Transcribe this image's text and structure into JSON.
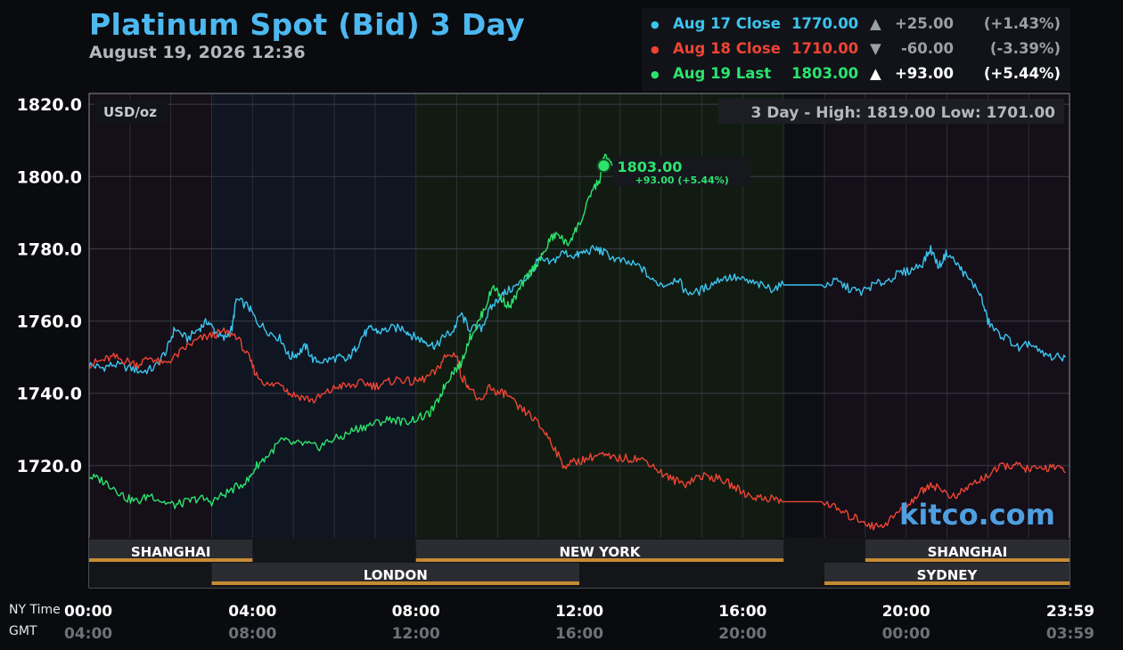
{
  "header": {
    "title": "Platinum Spot (Bid) 3 Day",
    "subtitle": "August 19, 2026 12:36"
  },
  "legend": [
    {
      "name": "Aug 17 Close",
      "value": "1770.00",
      "arrow": "▲",
      "change": "+25.00",
      "percent": "(+1.43%)",
      "color": "#3cc4ef",
      "muted": true
    },
    {
      "name": "Aug 18 Close",
      "value": "1710.00",
      "arrow": "▼",
      "change": "-60.00",
      "percent": "(-3.39%)",
      "color": "#ee4433",
      "muted": true
    },
    {
      "name": "Aug 19 Last",
      "value": "1803.00",
      "arrow": "▲",
      "change": "+93.00",
      "percent": "(+5.44%)",
      "color": "#2de36e",
      "muted": false
    }
  ],
  "chart_data": {
    "type": "line",
    "unit_label": "USD/oz",
    "stats_label": "3 Day - High: 1819.00  Low: 1701.00",
    "watermark": "kitco.com",
    "ylim": [
      1700,
      1823
    ],
    "yticks": [
      "1820.0",
      "1800.0",
      "1780.0",
      "1760.0",
      "1740.0",
      "1720.0"
    ],
    "ytick_values": [
      1820,
      1800,
      1780,
      1760,
      1740,
      1720
    ],
    "xlim_hours": [
      0,
      24
    ],
    "xticks_ny": [
      "00:00",
      "04:00",
      "08:00",
      "12:00",
      "16:00",
      "20:00",
      "23:59"
    ],
    "xticks_gmt": [
      "04:00",
      "08:00",
      "12:00",
      "16:00",
      "20:00",
      "00:00",
      "03:59"
    ],
    "xtick_hours": [
      0,
      4,
      8,
      12,
      16,
      20,
      24
    ],
    "ny_time_label": "NY Time",
    "gmt_label": "GMT",
    "sessions_top": [
      {
        "name": "SHANGHAI",
        "start": 0,
        "end": 4
      },
      {
        "name": "NEW YORK",
        "start": 8,
        "end": 17
      },
      {
        "name": "SHANGHAI",
        "start": 19,
        "end": 24
      }
    ],
    "sessions_bottom": [
      {
        "name": "LONDON",
        "start": 3,
        "end": 12
      },
      {
        "name": "SYDNEY",
        "start": 18,
        "end": 24
      }
    ],
    "last_point": {
      "hour": 12.6,
      "value": 1803,
      "label": "1803.00",
      "change_label": "+93.00 (+5.44%)"
    },
    "series": [
      {
        "name": "Aug 17 Close",
        "color": "#3cc4ef",
        "points": [
          [
            0,
            1748
          ],
          [
            0.3,
            1747
          ],
          [
            0.6,
            1748
          ],
          [
            1.0,
            1747
          ],
          [
            1.3,
            1746
          ],
          [
            1.6,
            1747
          ],
          [
            1.9,
            1752
          ],
          [
            2.1,
            1758
          ],
          [
            2.4,
            1755
          ],
          [
            2.7,
            1758
          ],
          [
            2.9,
            1760
          ],
          [
            3.1,
            1757
          ],
          [
            3.3,
            1755
          ],
          [
            3.5,
            1758
          ],
          [
            3.6,
            1766
          ],
          [
            3.9,
            1764
          ],
          [
            4.1,
            1760
          ],
          [
            4.4,
            1757
          ],
          [
            4.7,
            1755
          ],
          [
            4.9,
            1750
          ],
          [
            5.1,
            1751
          ],
          [
            5.3,
            1753
          ],
          [
            5.5,
            1749
          ],
          [
            5.8,
            1749
          ],
          [
            6.1,
            1750
          ],
          [
            6.3,
            1749
          ],
          [
            6.5,
            1752
          ],
          [
            6.7,
            1756
          ],
          [
            6.9,
            1758
          ],
          [
            7.1,
            1757
          ],
          [
            7.4,
            1758
          ],
          [
            7.7,
            1758
          ],
          [
            7.9,
            1756
          ],
          [
            8.1,
            1755
          ],
          [
            8.3,
            1754
          ],
          [
            8.5,
            1753
          ],
          [
            8.7,
            1756
          ],
          [
            8.9,
            1757
          ],
          [
            9.1,
            1762
          ],
          [
            9.3,
            1758
          ],
          [
            9.6,
            1758
          ],
          [
            9.8,
            1763
          ],
          [
            10.0,
            1766
          ],
          [
            10.2,
            1768
          ],
          [
            10.5,
            1770
          ],
          [
            10.8,
            1773
          ],
          [
            11.0,
            1777
          ],
          [
            11.3,
            1776
          ],
          [
            11.6,
            1779
          ],
          [
            11.9,
            1778
          ],
          [
            12.1,
            1779
          ],
          [
            12.4,
            1780
          ],
          [
            12.6,
            1779
          ],
          [
            12.9,
            1777
          ],
          [
            13.2,
            1776
          ],
          [
            13.5,
            1775
          ],
          [
            13.8,
            1771
          ],
          [
            14.1,
            1770
          ],
          [
            14.4,
            1772
          ],
          [
            14.6,
            1768
          ],
          [
            14.9,
            1768
          ],
          [
            15.2,
            1770
          ],
          [
            15.5,
            1772
          ],
          [
            15.8,
            1772
          ],
          [
            16.1,
            1771
          ],
          [
            16.4,
            1770
          ],
          [
            16.7,
            1769
          ],
          [
            17.0,
            1770
          ],
          [
            17.5,
            1770
          ],
          [
            18.0,
            1770
          ],
          [
            18.3,
            1771
          ],
          [
            18.6,
            1769
          ],
          [
            18.9,
            1768
          ],
          [
            19.2,
            1770
          ],
          [
            19.5,
            1771
          ],
          [
            19.8,
            1773
          ],
          [
            20.1,
            1774
          ],
          [
            20.4,
            1776
          ],
          [
            20.6,
            1780
          ],
          [
            20.8,
            1775
          ],
          [
            21.0,
            1779
          ],
          [
            21.3,
            1775
          ],
          [
            21.5,
            1772
          ],
          [
            21.8,
            1768
          ],
          [
            22.0,
            1760
          ],
          [
            22.2,
            1757
          ],
          [
            22.5,
            1755
          ],
          [
            22.8,
            1752
          ],
          [
            23.0,
            1754
          ],
          [
            23.3,
            1751
          ],
          [
            23.6,
            1750
          ],
          [
            23.9,
            1750
          ]
        ]
      },
      {
        "name": "Aug 18 Close",
        "color": "#ee4433",
        "points": [
          [
            0,
            1748
          ],
          [
            0.3,
            1749
          ],
          [
            0.6,
            1750
          ],
          [
            0.9,
            1749
          ],
          [
            1.2,
            1748
          ],
          [
            1.5,
            1750
          ],
          [
            1.8,
            1748
          ],
          [
            2.1,
            1750
          ],
          [
            2.4,
            1753
          ],
          [
            2.7,
            1755
          ],
          [
            3.0,
            1756
          ],
          [
            3.3,
            1757
          ],
          [
            3.6,
            1756
          ],
          [
            3.9,
            1750
          ],
          [
            4.1,
            1745
          ],
          [
            4.4,
            1742
          ],
          [
            4.7,
            1743
          ],
          [
            4.9,
            1740
          ],
          [
            5.2,
            1739
          ],
          [
            5.5,
            1738
          ],
          [
            5.8,
            1740
          ],
          [
            6.1,
            1742
          ],
          [
            6.4,
            1742
          ],
          [
            6.7,
            1743
          ],
          [
            7.0,
            1742
          ],
          [
            7.3,
            1743
          ],
          [
            7.6,
            1744
          ],
          [
            7.9,
            1743
          ],
          [
            8.2,
            1744
          ],
          [
            8.5,
            1746
          ],
          [
            8.7,
            1750
          ],
          [
            9.0,
            1751
          ],
          [
            9.1,
            1745
          ],
          [
            9.3,
            1742
          ],
          [
            9.6,
            1737
          ],
          [
            9.8,
            1742
          ],
          [
            10.0,
            1740
          ],
          [
            10.2,
            1740
          ],
          [
            10.5,
            1736
          ],
          [
            10.8,
            1734
          ],
          [
            11.1,
            1730
          ],
          [
            11.3,
            1727
          ],
          [
            11.6,
            1720
          ],
          [
            11.9,
            1721
          ],
          [
            12.2,
            1722
          ],
          [
            12.5,
            1723
          ],
          [
            12.8,
            1722
          ],
          [
            13.1,
            1722
          ],
          [
            13.4,
            1722
          ],
          [
            13.7,
            1721
          ],
          [
            14.0,
            1718
          ],
          [
            14.3,
            1716
          ],
          [
            14.6,
            1715
          ],
          [
            14.9,
            1717
          ],
          [
            15.2,
            1717
          ],
          [
            15.5,
            1716
          ],
          [
            15.8,
            1714
          ],
          [
            16.1,
            1712
          ],
          [
            16.4,
            1711
          ],
          [
            16.7,
            1711
          ],
          [
            17.0,
            1710
          ],
          [
            17.5,
            1710
          ],
          [
            18.0,
            1710
          ],
          [
            18.3,
            1708
          ],
          [
            18.6,
            1706
          ],
          [
            18.9,
            1705
          ],
          [
            19.2,
            1703
          ],
          [
            19.5,
            1704
          ],
          [
            19.8,
            1707
          ],
          [
            20.1,
            1710
          ],
          [
            20.4,
            1713
          ],
          [
            20.6,
            1715
          ],
          [
            20.9,
            1713
          ],
          [
            21.2,
            1711
          ],
          [
            21.5,
            1714
          ],
          [
            21.8,
            1716
          ],
          [
            22.1,
            1718
          ],
          [
            22.4,
            1720
          ],
          [
            22.7,
            1720
          ],
          [
            23.0,
            1719
          ],
          [
            23.3,
            1719
          ],
          [
            23.6,
            1720
          ],
          [
            23.9,
            1718
          ]
        ]
      },
      {
        "name": "Aug 19 Last",
        "color": "#2de36e",
        "points": [
          [
            0,
            1717
          ],
          [
            0.3,
            1716
          ],
          [
            0.6,
            1714
          ],
          [
            0.9,
            1711
          ],
          [
            1.2,
            1710
          ],
          [
            1.5,
            1712
          ],
          [
            1.8,
            1710
          ],
          [
            2.1,
            1709
          ],
          [
            2.4,
            1710
          ],
          [
            2.7,
            1711
          ],
          [
            3.0,
            1710
          ],
          [
            3.3,
            1712
          ],
          [
            3.6,
            1714
          ],
          [
            3.9,
            1716
          ],
          [
            4.1,
            1720
          ],
          [
            4.4,
            1723
          ],
          [
            4.7,
            1727
          ],
          [
            5.0,
            1726
          ],
          [
            5.3,
            1726
          ],
          [
            5.6,
            1725
          ],
          [
            5.9,
            1727
          ],
          [
            6.2,
            1728
          ],
          [
            6.5,
            1730
          ],
          [
            6.8,
            1731
          ],
          [
            7.1,
            1732
          ],
          [
            7.4,
            1733
          ],
          [
            7.7,
            1732
          ],
          [
            8.0,
            1733
          ],
          [
            8.3,
            1734
          ],
          [
            8.5,
            1737
          ],
          [
            8.7,
            1742
          ],
          [
            8.9,
            1746
          ],
          [
            9.1,
            1748
          ],
          [
            9.3,
            1755
          ],
          [
            9.5,
            1759
          ],
          [
            9.7,
            1764
          ],
          [
            9.9,
            1770
          ],
          [
            10.1,
            1766
          ],
          [
            10.3,
            1764
          ],
          [
            10.5,
            1768
          ],
          [
            10.7,
            1772
          ],
          [
            10.9,
            1775
          ],
          [
            11.1,
            1778
          ],
          [
            11.3,
            1783
          ],
          [
            11.5,
            1784
          ],
          [
            11.7,
            1781
          ],
          [
            11.9,
            1785
          ],
          [
            12.1,
            1789
          ],
          [
            12.3,
            1796
          ],
          [
            12.5,
            1799
          ],
          [
            12.6,
            1806
          ],
          [
            12.8,
            1803
          ]
        ]
      }
    ]
  }
}
